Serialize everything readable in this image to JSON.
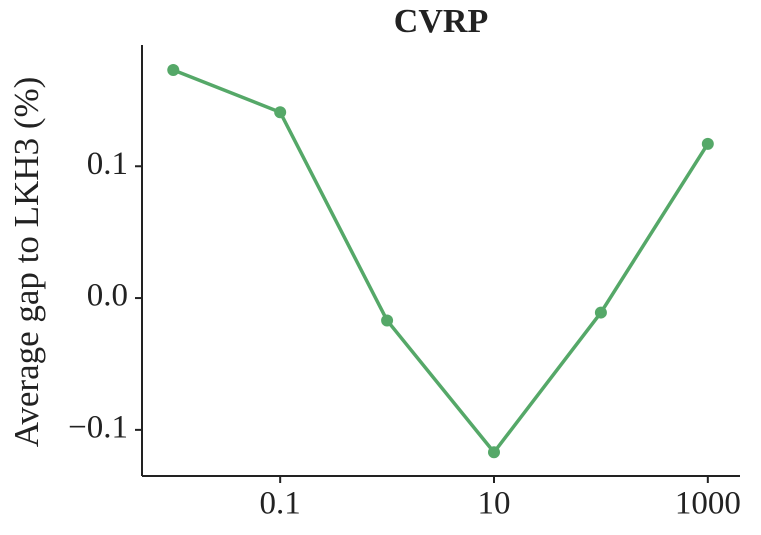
{
  "chart_data": {
    "type": "line",
    "title": "CVRP",
    "y_label": "Average gap to LKH3 (%)",
    "x": [
      0.01,
      0.1,
      1,
      10,
      100,
      1000
    ],
    "series": [
      {
        "color": "#55a868",
        "values": [
          0.173,
          0.141,
          -0.017,
          -0.117,
          -0.011,
          0.117
        ]
      }
    ],
    "x_scale": "log",
    "xlim": [
      0.0051,
      2000
    ],
    "xticks": [
      0.1,
      10,
      1000
    ],
    "ylim": [
      -0.135,
      0.192
    ],
    "yticks": [
      {
        "value": -0.1,
        "label": "−0.1"
      },
      {
        "value": 0,
        "label": "0.0"
      },
      0.1
    ],
    "grid": false
  }
}
